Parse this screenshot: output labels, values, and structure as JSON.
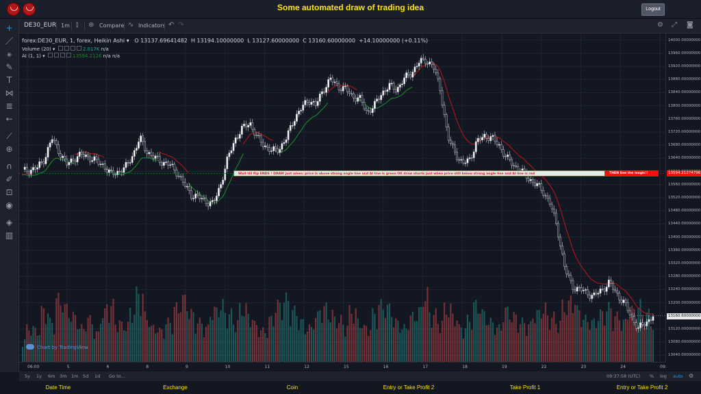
{
  "header": {
    "title": "Some automated draw of trading idea",
    "logout_label": "Logout"
  },
  "toolbar": {
    "symbol": "DE30_EUR",
    "interval": "1m",
    "compare_label": "Compare",
    "indicators_label": "Indicators"
  },
  "legend": {
    "symbol_line": "forex:DE30_EUR, 1, forex, Heikin Ashi",
    "open": "O 13137.69641482",
    "high": "H 13194.10000000",
    "low": "L 13127.60000000",
    "close": "C 13160.60000000",
    "change": "+14.10000000 (+0.11%)",
    "volume_label": "Volume (20)",
    "volume_value": "2.017K",
    "volume_na": "n/a",
    "ai_label": "AI (1, 1)",
    "ai_value": "13594.2126",
    "ai_na1": "n/a",
    "ai_na2": "n/a"
  },
  "price_axis": {
    "labels": [
      "14000.00000000",
      "13960.00000000",
      "13920.00000000",
      "13880.00000000",
      "13840.00000000",
      "13800.00000000",
      "13760.00000000",
      "13720.00000000",
      "13680.00000000",
      "13640.00000000",
      "13600.00000000",
      "13560.00000000",
      "13520.00000000",
      "13480.00000000",
      "13440.00000000",
      "13400.00000000",
      "13360.00000000",
      "13320.00000000",
      "13280.00000000",
      "13240.00000000",
      "13200.00000000",
      "13120.00000000",
      "13080.00000000",
      "13040.00000000"
    ],
    "ai_tag": "13594.21274796",
    "last_tag": "13160.60000000"
  },
  "annotation": {
    "text": "Wait till flip ENDS !   DRAW just when:  price is above strong angle line and AI line is green       OK       draw shorts just when price still below strong angle line and AI line is red",
    "end_text": "THEN See the magic!!"
  },
  "watermark": "Chart by TradingView",
  "time_axis": {
    "labels": [
      "06:00",
      "5",
      "6",
      "8",
      "9",
      "10",
      "11",
      "12",
      "15",
      "16",
      "17",
      "18",
      "19",
      "22",
      "23",
      "24",
      "09:"
    ]
  },
  "bottom_bar": {
    "ranges": [
      "5y",
      "1y",
      "6m",
      "3m",
      "1m",
      "5d",
      "1d"
    ],
    "goto": "Go to...",
    "clock": "09:37:58 (UTC)",
    "percent": "%",
    "log": "log",
    "auto": "auto"
  },
  "footer": {
    "items": [
      "Date Time",
      "Exchange",
      "Coin",
      "Entry or Take Profit 2",
      "Take Profit 1",
      "Entry or Take Profit 2"
    ]
  },
  "colors": {
    "background": "#131722",
    "up": "#26a69a",
    "down": "#ef5350",
    "ai_green": "#1b8a2a",
    "ai_red": "#b01818",
    "accent_yellow": "#ffe600"
  },
  "chart_data": {
    "type": "candlestick",
    "chart_style": "Heikin Ashi",
    "ylim": [
      13020,
      14020
    ],
    "close_series": [
      13600,
      13605,
      13610,
      13640,
      13700,
      13660,
      13620,
      13640,
      13650,
      13645,
      13630,
      13620,
      13590,
      13600,
      13610,
      13650,
      13700,
      13660,
      13640,
      13630,
      13620,
      13600,
      13560,
      13530,
      13520,
      13510,
      13500,
      13560,
      13640,
      13700,
      13730,
      13750,
      13700,
      13680,
      13660,
      13670,
      13700,
      13760,
      13790,
      13820,
      13800,
      13850,
      13880,
      13860,
      13850,
      13830,
      13820,
      13780,
      13800,
      13840,
      13860,
      13850,
      13880,
      13900,
      13930,
      13940,
      13920,
      13850,
      13700,
      13660,
      13620,
      13640,
      13690,
      13710,
      13700,
      13680,
      13640,
      13620,
      13600,
      13580,
      13560,
      13540,
      13500,
      13420,
      13300,
      13250,
      13240,
      13230,
      13220,
      13240,
      13260,
      13230,
      13200,
      13160,
      13120,
      13140,
      13160
    ],
    "ai_line_points": "derived from close series",
    "volume_series": [
      40,
      60,
      55,
      90,
      70,
      110,
      95,
      80,
      60,
      75,
      50,
      85,
      100,
      70,
      65,
      90,
      120,
      80,
      60,
      55,
      70,
      95,
      110,
      85,
      70,
      60,
      90,
      100,
      85,
      70,
      95,
      80,
      65,
      55,
      75,
      100,
      110,
      90,
      70,
      60,
      80,
      95,
      85,
      75,
      65,
      90,
      70,
      60,
      85,
      100,
      95,
      70,
      60,
      80,
      90,
      120,
      85,
      70,
      95,
      80,
      60,
      75,
      100,
      85,
      70,
      60,
      90,
      80,
      70,
      65,
      85,
      95,
      80,
      70,
      100,
      110,
      90,
      75,
      70,
      85,
      95,
      80,
      70,
      90,
      100,
      85,
      70
    ]
  }
}
